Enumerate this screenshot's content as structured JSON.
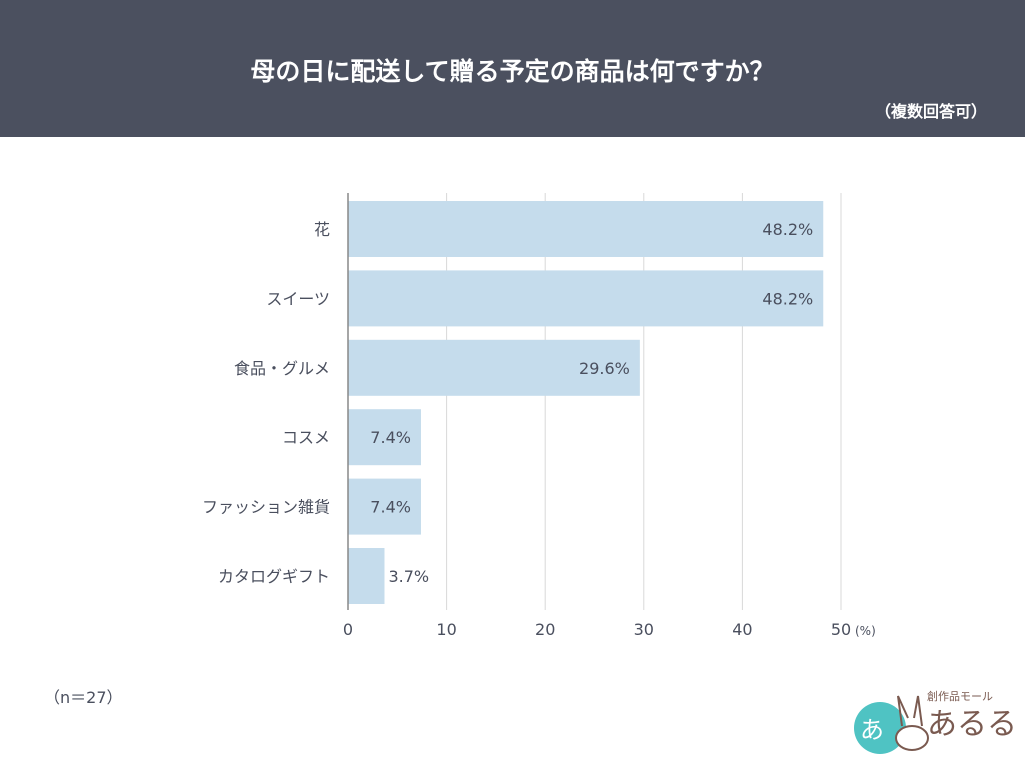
{
  "header": {
    "title": "母の日に配送して贈る予定の商品は何ですか？",
    "subtitle": "（複数回答可）"
  },
  "chart_data": {
    "type": "bar",
    "orientation": "horizontal",
    "categories": [
      "花",
      "スイーツ",
      "食品・グルメ",
      "コスメ",
      "ファッション雑貨",
      "カタログギフト"
    ],
    "values": [
      48.2,
      48.2,
      29.6,
      7.4,
      7.4,
      3.7
    ],
    "data_labels": [
      "48.2%",
      "48.2%",
      "29.6%",
      "7.4%",
      "7.4%",
      "3.7%"
    ],
    "xlim": [
      0,
      50
    ],
    "xticks": [
      0,
      10,
      20,
      30,
      40,
      50
    ],
    "xunit": "(%)",
    "grid": true,
    "bar_color": "#c5dcec",
    "text_color": "#4a4f5e"
  },
  "footer": {
    "n_note": "（n＝27）"
  },
  "logo": {
    "text": "創作品モール あるる"
  }
}
